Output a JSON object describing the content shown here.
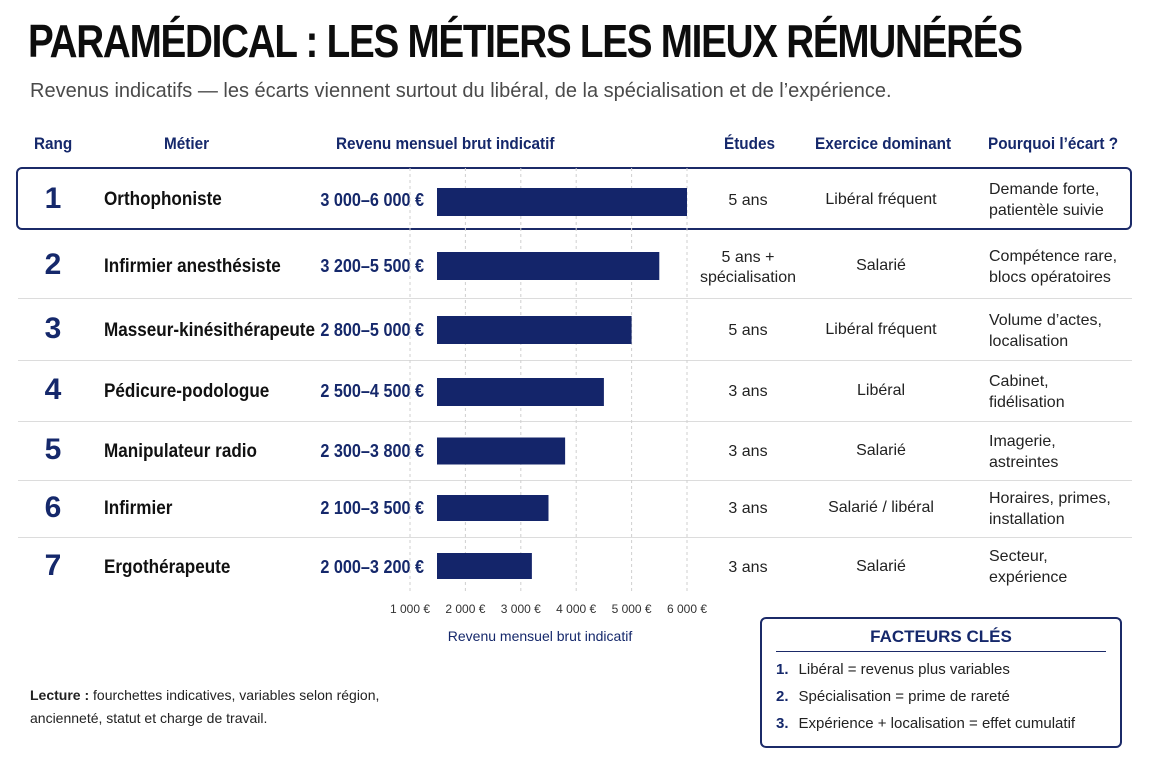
{
  "title": "PARAMÉDICAL : LES MÉTIERS LES MIEUX RÉMUNÉRÉS",
  "subtitle": "Revenus indicatifs — les écarts viennent surtout du libéral, de la spécialisation et de l’expérience.",
  "headers": {
    "rank": "Rang",
    "job": "Métier",
    "income": "Revenu mensuel brut indicatif",
    "studies": "Études",
    "exercise": "Exercice dominant",
    "why": "Pourquoi l’écart ?"
  },
  "rows": [
    {
      "rank": "1",
      "job": "Orthophoniste",
      "range": "3 000–6 000 €",
      "studies": "5 ans",
      "exercise": "Libéral fréquent",
      "reason_1": "Demande forte,",
      "reason_2": "patientèle suivie"
    },
    {
      "rank": "2",
      "job": "Infirmier anesthésiste",
      "range": "3 200–5 500 €",
      "studies": "5 ans +\nspécialisation",
      "exercise": "Salarié",
      "reason_1": "Compétence rare,",
      "reason_2": "blocs opératoires"
    },
    {
      "rank": "3",
      "job": "Masseur-kinésithérapeute",
      "range": "2 800–5 000 €",
      "studies": "5 ans",
      "exercise": "Libéral fréquent",
      "reason_1": "Volume d’actes,",
      "reason_2": "localisation"
    },
    {
      "rank": "4",
      "job": "Pédicure-podologue",
      "range": "2 500–4 500 €",
      "studies": "3 ans",
      "exercise": "Libéral",
      "reason_1": "Cabinet,",
      "reason_2": "fidélisation"
    },
    {
      "rank": "5",
      "job": "Manipulateur radio",
      "range": "2 300–3 800 €",
      "studies": "3 ans",
      "exercise": "Salarié",
      "reason_1": "Imagerie,",
      "reason_2": "astreintes"
    },
    {
      "rank": "6",
      "job": "Infirmier",
      "range": "2 100–3 500 €",
      "studies": "3 ans",
      "exercise": "Salarié / libéral",
      "reason_1": "Horaires, primes,",
      "reason_2": "installation"
    },
    {
      "rank": "7",
      "job": "Ergothérapeute",
      "range": "2 000–3 200 €",
      "studies": "3 ans",
      "exercise": "Salarié",
      "reason_1": "Secteur,",
      "reason_2": "expérience"
    }
  ],
  "chart_data": {
    "type": "bar",
    "orientation": "horizontal",
    "categories": [
      "Orthophoniste",
      "Infirmier anesthésiste",
      "Masseur-kinésithérapeute",
      "Pédicure-podologue",
      "Manipulateur radio",
      "Infirmier",
      "Ergothérapeute"
    ],
    "values": [
      6000,
      5500,
      5000,
      4500,
      3800,
      3500,
      3200
    ],
    "xlabel": "Revenu mensuel brut indicatif",
    "xlim": [
      1000,
      6000
    ],
    "ticks": [
      1000,
      2000,
      3000,
      4000,
      5000,
      6000
    ],
    "tick_labels": [
      "1 000 €",
      "2 000 €",
      "3 000 €",
      "4 000 €",
      "5 000 €",
      "6 000 €"
    ],
    "grid": "vertical dashed",
    "bar_color": "#14256a"
  },
  "note": {
    "bold": "Lecture :",
    "text_1": " fourchettes indicatives, variables selon région,",
    "text_2": "ancienneté, statut et charge de travail."
  },
  "factors": {
    "title": "FACTEURS CLÉS",
    "items": [
      {
        "num": "1.",
        "text": "Libéral = revenus plus variables"
      },
      {
        "num": "2.",
        "text": "Spécialisation = prime de rareté"
      },
      {
        "num": "3.",
        "text": "Expérience + localisation = effet cumulatif"
      }
    ]
  },
  "colors": {
    "navy": "#15286b",
    "border": "#1b2a68"
  }
}
